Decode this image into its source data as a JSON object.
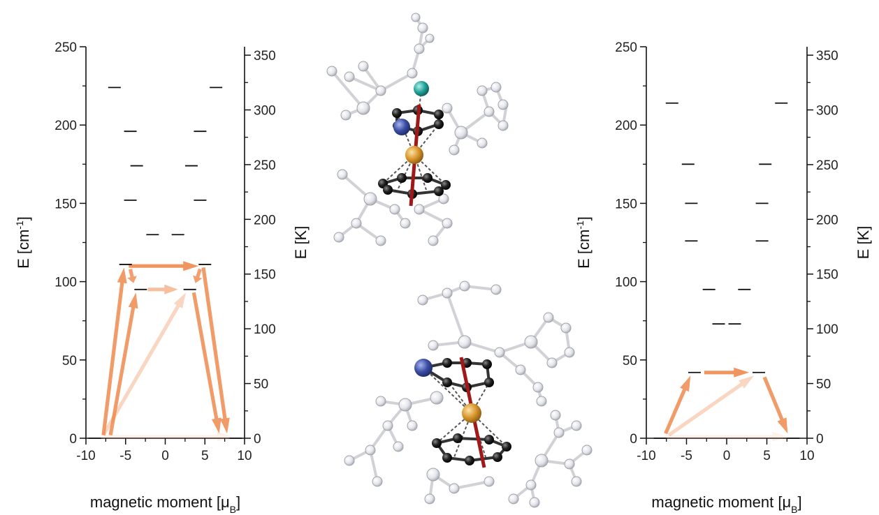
{
  "chart_data": [
    {
      "type": "scatter",
      "xlabel_main": "magnetic moment [μ",
      "xlabel_sub": "B",
      "xlabel_end": "]",
      "ylabel_left_main": "E [cm",
      "ylabel_left_sup": "-1",
      "ylabel_left_end": "]",
      "ylabel_right": "E [K]",
      "xlim": [
        -10,
        10
      ],
      "ylim": [
        0,
        250
      ],
      "y2lim": [
        0,
        357.7
      ],
      "xticks": [
        -10,
        -5,
        0,
        5,
        10
      ],
      "yticks": [
        0,
        50,
        100,
        150,
        200,
        250
      ],
      "y2ticks": [
        0,
        50,
        100,
        150,
        200,
        250,
        300,
        350
      ],
      "levels": [
        {
          "x": -8.9,
          "y": 0
        },
        {
          "x": 8.9,
          "y": 0
        },
        {
          "x": -3.1,
          "y": 95
        },
        {
          "x": 3.1,
          "y": 95
        },
        {
          "x": -5.0,
          "y": 111
        },
        {
          "x": 5.0,
          "y": 111
        },
        {
          "x": -1.6,
          "y": 130
        },
        {
          "x": 1.6,
          "y": 130
        },
        {
          "x": -4.4,
          "y": 152
        },
        {
          "x": 4.4,
          "y": 152
        },
        {
          "x": -3.6,
          "y": 174
        },
        {
          "x": 3.3,
          "y": 174
        },
        {
          "x": -4.4,
          "y": 196
        },
        {
          "x": 4.4,
          "y": 196
        },
        {
          "x": -6.4,
          "y": 224
        },
        {
          "x": 6.4,
          "y": 224
        }
      ],
      "transitions": [
        {
          "from": [
            -7.8,
            2
          ],
          "to": [
            -5.2,
            109
          ],
          "strength": 0.85
        },
        {
          "from": [
            -6.9,
            2
          ],
          "to": [
            -3.7,
            93
          ],
          "strength": 0.85
        },
        {
          "from": [
            -7.8,
            2
          ],
          "to": [
            2.6,
            93
          ],
          "strength": 0.35
        },
        {
          "from": [
            -7.8,
            1
          ],
          "to": [
            8.5,
            1
          ],
          "strength": 0.12
        },
        {
          "from": [
            -4.6,
            110
          ],
          "to": [
            4.2,
            110
          ],
          "strength": 0.9
        },
        {
          "from": [
            -4.4,
            108
          ],
          "to": [
            -4.0,
            99
          ],
          "strength": 0.8
        },
        {
          "from": [
            -2.2,
            95
          ],
          "to": [
            1.6,
            95
          ],
          "strength": 0.55
        },
        {
          "from": [
            4.4,
            108
          ],
          "to": [
            3.8,
            99
          ],
          "strength": 0.8
        },
        {
          "from": [
            4.8,
            109
          ],
          "to": [
            7.8,
            3
          ],
          "strength": 0.85
        },
        {
          "from": [
            3.6,
            93
          ],
          "to": [
            6.8,
            3
          ],
          "strength": 0.85
        }
      ]
    },
    {
      "type": "scatter",
      "xlabel_main": "magnetic moment [μ",
      "xlabel_sub": "B",
      "xlabel_end": "]",
      "ylabel_left_main": "E [cm",
      "ylabel_left_sup": "-1",
      "ylabel_left_end": "]",
      "ylabel_right": "E [K]",
      "xlim": [
        -10,
        10
      ],
      "ylim": [
        0,
        250
      ],
      "y2lim": [
        0,
        357.7
      ],
      "xticks": [
        -10,
        -5,
        0,
        5,
        10
      ],
      "yticks": [
        0,
        50,
        100,
        150,
        200,
        250
      ],
      "y2ticks": [
        0,
        50,
        100,
        150,
        200,
        250,
        300,
        350
      ],
      "levels": [
        {
          "x": -8.3,
          "y": 0
        },
        {
          "x": 8.3,
          "y": 0
        },
        {
          "x": -4.0,
          "y": 42
        },
        {
          "x": 4.0,
          "y": 42
        },
        {
          "x": -1.0,
          "y": 73
        },
        {
          "x": 1.0,
          "y": 73
        },
        {
          "x": -2.2,
          "y": 95
        },
        {
          "x": 2.2,
          "y": 95
        },
        {
          "x": -4.4,
          "y": 126
        },
        {
          "x": 4.4,
          "y": 126
        },
        {
          "x": -4.4,
          "y": 150
        },
        {
          "x": 4.4,
          "y": 150
        },
        {
          "x": -4.8,
          "y": 175
        },
        {
          "x": 4.8,
          "y": 175
        },
        {
          "x": -6.8,
          "y": 214
        },
        {
          "x": 6.8,
          "y": 214
        }
      ],
      "transitions": [
        {
          "from": [
            -7.6,
            3
          ],
          "to": [
            -4.5,
            40
          ],
          "strength": 0.85
        },
        {
          "from": [
            -7.2,
            2
          ],
          "to": [
            3.4,
            40
          ],
          "strength": 0.35
        },
        {
          "from": [
            -7.6,
            1
          ],
          "to": [
            7.6,
            1
          ],
          "strength": 0.12
        },
        {
          "from": [
            -2.8,
            42
          ],
          "to": [
            2.8,
            42
          ],
          "strength": 0.9
        },
        {
          "from": [
            4.7,
            39
          ],
          "to": [
            7.6,
            3
          ],
          "strength": 0.85
        }
      ]
    }
  ],
  "colors": {
    "arrow": "#ee8a4e",
    "axis": "#111111",
    "level": "#111111",
    "molecule_metal": "#e0a03a",
    "molecule_carbon": "#1a1a1a",
    "molecule_n": "#3c4fa6",
    "molecule_teal": "#2aa8a0",
    "molecule_axis": "#a01818",
    "molecule_ghost": "#c8c9cf"
  }
}
